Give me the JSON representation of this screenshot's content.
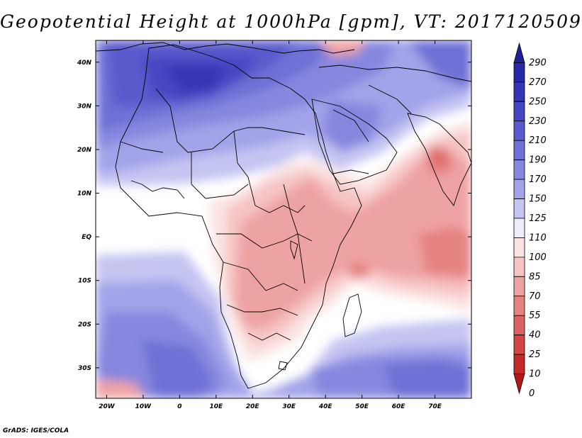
{
  "title": "Geopotential Height at 1000hPa [gpm], VT: 2017120509",
  "credit": "GrADS: IGES/COLA",
  "map": {
    "lon_range": [
      -23,
      80
    ],
    "lat_range": [
      -37,
      45
    ],
    "lat_ticks": [
      {
        "value": 40,
        "label": "40N"
      },
      {
        "value": 30,
        "label": "30N"
      },
      {
        "value": 20,
        "label": "20N"
      },
      {
        "value": 10,
        "label": "10N"
      },
      {
        "value": 0,
        "label": "EQ"
      },
      {
        "value": -10,
        "label": "10S"
      },
      {
        "value": -20,
        "label": "20S"
      },
      {
        "value": -30,
        "label": "30S"
      }
    ],
    "lon_ticks": [
      {
        "value": -20,
        "label": "20W"
      },
      {
        "value": -10,
        "label": "10W"
      },
      {
        "value": 0,
        "label": "0"
      },
      {
        "value": 10,
        "label": "10E"
      },
      {
        "value": 20,
        "label": "20E"
      },
      {
        "value": 30,
        "label": "30E"
      },
      {
        "value": 40,
        "label": "40E"
      },
      {
        "value": 50,
        "label": "50E"
      },
      {
        "value": 60,
        "label": "60E"
      },
      {
        "value": 70,
        "label": "70E"
      }
    ]
  },
  "colorbar": {
    "levels": [
      "290",
      "270",
      "250",
      "230",
      "210",
      "190",
      "170",
      "150",
      "125",
      "110",
      "100",
      "85",
      "70",
      "55",
      "40",
      "25",
      "10",
      "0"
    ],
    "colors": [
      "#1f1f9a",
      "#2727a8",
      "#3434b5",
      "#4646c2",
      "#5a5acc",
      "#6f6fd6",
      "#8787df",
      "#a3a3e9",
      "#c5c5f2",
      "#ececfb",
      "#fbe3e3",
      "#f6c4c4",
      "#eea3a3",
      "#e58282",
      "#dc6363",
      "#d34646",
      "#c42a2a",
      "#b01717"
    ]
  }
}
